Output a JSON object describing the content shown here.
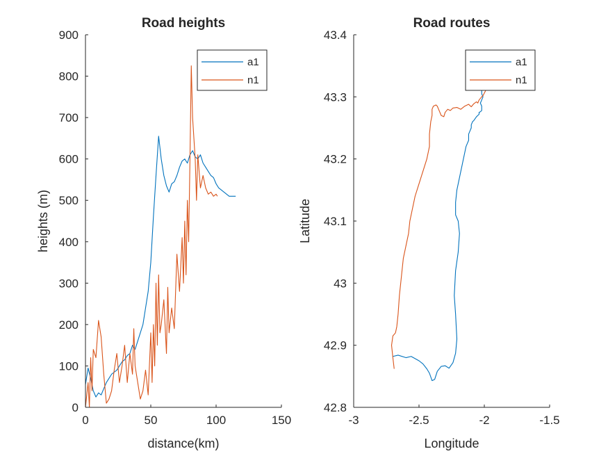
{
  "chart_data": [
    {
      "type": "line",
      "title": "Road heights",
      "xlabel": "distance(km)",
      "ylabel": "heights (m)",
      "xlim": [
        0,
        150
      ],
      "ylim": [
        0,
        900
      ],
      "xticks": [
        0,
        50,
        100,
        150
      ],
      "yticks": [
        0,
        100,
        200,
        300,
        400,
        500,
        600,
        700,
        800,
        900
      ],
      "xtick_labels": [
        "0",
        "50",
        "100",
        "150"
      ],
      "ytick_labels": [
        "0",
        "100",
        "200",
        "300",
        "400",
        "500",
        "600",
        "700",
        "800",
        "900"
      ],
      "grid": false,
      "legend": "top-right",
      "series": [
        {
          "name": "a1",
          "color": "#0072BD",
          "x": [
            0,
            2,
            4,
            6,
            8,
            10,
            12,
            14,
            16,
            18,
            20,
            22,
            24,
            26,
            28,
            30,
            32,
            34,
            36,
            38,
            40,
            42,
            44,
            46,
            48,
            50,
            52,
            54,
            56,
            58,
            60,
            62,
            64,
            66,
            68,
            70,
            72,
            74,
            76,
            78,
            80,
            82,
            84,
            86,
            88,
            90,
            92,
            94,
            96,
            98,
            100,
            102,
            104,
            106,
            108,
            110,
            112,
            115
          ],
          "y": [
            55,
            95,
            70,
            40,
            25,
            35,
            30,
            45,
            60,
            70,
            80,
            85,
            90,
            100,
            110,
            115,
            125,
            130,
            150,
            140,
            160,
            180,
            200,
            240,
            280,
            350,
            460,
            560,
            655,
            600,
            560,
            535,
            520,
            540,
            545,
            560,
            580,
            595,
            600,
            590,
            610,
            620,
            605,
            600,
            610,
            590,
            580,
            570,
            560,
            555,
            540,
            530,
            525,
            520,
            515,
            510,
            510,
            510
          ]
        },
        {
          "name": "n1",
          "color": "#D95319",
          "x": [
            0,
            2,
            3,
            4,
            5,
            6,
            8,
            10,
            12,
            14,
            16,
            18,
            20,
            22,
            24,
            26,
            28,
            30,
            32,
            34,
            36,
            37,
            38,
            40,
            42,
            44,
            46,
            48,
            50,
            51,
            52,
            53,
            54,
            55,
            56,
            57,
            58,
            60,
            62,
            63,
            64,
            66,
            68,
            70,
            72,
            74,
            75,
            76,
            77,
            78,
            79,
            80,
            81,
            82,
            84,
            85,
            86,
            88,
            90,
            92,
            94,
            96,
            98,
            100,
            101
          ],
          "y": [
            0,
            60,
            0,
            120,
            40,
            140,
            120,
            210,
            170,
            80,
            10,
            20,
            40,
            90,
            130,
            60,
            100,
            150,
            60,
            130,
            80,
            190,
            100,
            60,
            20,
            40,
            90,
            30,
            180,
            60,
            200,
            100,
            300,
            150,
            320,
            180,
            200,
            260,
            130,
            290,
            180,
            240,
            190,
            370,
            280,
            410,
            300,
            450,
            320,
            500,
            400,
            600,
            825,
            700,
            600,
            500,
            610,
            530,
            560,
            530,
            515,
            520,
            510,
            515,
            510
          ]
        }
      ]
    },
    {
      "type": "line",
      "title": "Road routes",
      "xlabel": "Longitude",
      "ylabel": "Latitude",
      "xlim": [
        -3,
        -1.5
      ],
      "ylim": [
        42.8,
        43.4
      ],
      "xticks": [
        -3,
        -2.5,
        -2,
        -1.5
      ],
      "yticks": [
        42.8,
        42.9,
        43,
        43.1,
        43.2,
        43.3,
        43.4
      ],
      "xtick_labels": [
        "-3",
        "-2.5",
        "-2",
        "-1.5"
      ],
      "ytick_labels": [
        "42.8",
        "42.9",
        "43",
        "43.1",
        "43.2",
        "43.3",
        "43.4"
      ],
      "grid": false,
      "legend": "top-right",
      "series": [
        {
          "name": "a1",
          "color": "#0072BD",
          "x": [
            -2.7,
            -2.66,
            -2.6,
            -2.56,
            -2.5,
            -2.47,
            -2.44,
            -2.42,
            -2.4,
            -2.38,
            -2.36,
            -2.33,
            -2.3,
            -2.27,
            -2.24,
            -2.22,
            -2.21,
            -2.22,
            -2.23,
            -2.22,
            -2.2,
            -2.19,
            -2.2,
            -2.22,
            -2.22,
            -2.21,
            -2.19,
            -2.18,
            -2.17,
            -2.16,
            -2.15,
            -2.14,
            -2.13,
            -2.12,
            -2.12,
            -2.11,
            -2.1,
            -2.1,
            -2.09,
            -2.08,
            -2.07,
            -2.06,
            -2.05,
            -2.04,
            -2.04,
            -2.03,
            -2.02,
            -2.02,
            -2.02,
            -2.03,
            -2.02,
            -2.01,
            -2.02,
            -2.02
          ],
          "y": [
            42.882,
            42.884,
            42.88,
            42.882,
            42.875,
            42.87,
            42.862,
            42.855,
            42.843,
            42.845,
            42.858,
            42.866,
            42.867,
            42.863,
            42.872,
            42.887,
            42.91,
            42.95,
            42.98,
            43.02,
            43.05,
            43.08,
            43.1,
            43.11,
            43.13,
            43.15,
            43.17,
            43.18,
            43.19,
            43.2,
            43.21,
            43.22,
            43.225,
            43.23,
            43.24,
            43.245,
            43.25,
            43.255,
            43.26,
            43.262,
            43.265,
            43.268,
            43.27,
            43.272,
            43.275,
            43.276,
            43.278,
            43.28,
            43.285,
            43.29,
            43.295,
            43.3,
            43.305,
            43.31
          ]
        },
        {
          "name": "n1",
          "color": "#D95319",
          "x": [
            -2.69,
            -2.7,
            -2.71,
            -2.7,
            -2.68,
            -2.67,
            -2.66,
            -2.65,
            -2.64,
            -2.62,
            -2.6,
            -2.58,
            -2.57,
            -2.55,
            -2.53,
            -2.5,
            -2.47,
            -2.44,
            -2.42,
            -2.42,
            -2.41,
            -2.4,
            -2.4,
            -2.39,
            -2.38,
            -2.37,
            -2.36,
            -2.35,
            -2.33,
            -2.31,
            -2.3,
            -2.28,
            -2.26,
            -2.24,
            -2.21,
            -2.18,
            -2.15,
            -2.12,
            -2.1,
            -2.08,
            -2.06,
            -2.05,
            -2.04,
            -2.02,
            -2.01,
            -1.99
          ],
          "y": [
            42.862,
            42.88,
            42.9,
            42.915,
            42.92,
            42.93,
            42.95,
            42.98,
            43.0,
            43.04,
            43.06,
            43.08,
            43.1,
            43.12,
            43.14,
            43.16,
            43.18,
            43.2,
            43.22,
            43.24,
            43.26,
            43.27,
            43.28,
            43.285,
            43.286,
            43.287,
            43.285,
            43.28,
            43.27,
            43.268,
            43.275,
            43.28,
            43.278,
            43.282,
            43.283,
            43.28,
            43.285,
            43.288,
            43.284,
            43.289,
            43.292,
            43.29,
            43.295,
            43.3,
            43.302,
            43.31
          ]
        }
      ]
    }
  ]
}
